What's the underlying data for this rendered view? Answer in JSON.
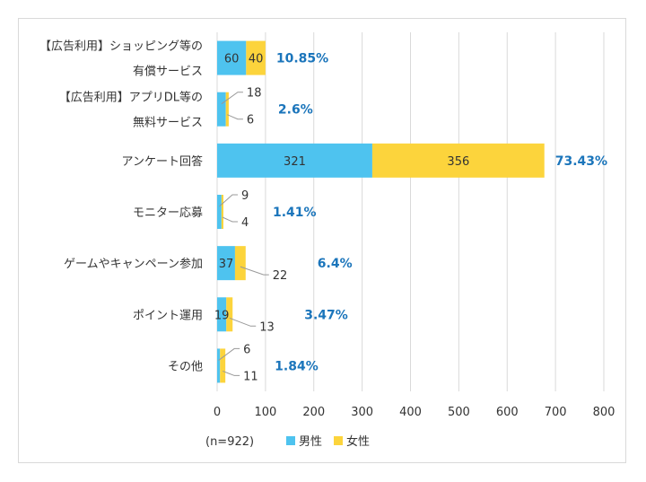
{
  "chart_data": {
    "type": "bar",
    "orientation": "horizontal",
    "stacked": true,
    "categories": [
      [
        "【広告利用】ショッピング等の",
        "有償サービス"
      ],
      [
        "【広告利用】アプリDL等の",
        "無料サービス"
      ],
      [
        "アンケート回答"
      ],
      [
        "モニター応募"
      ],
      [
        "ゲームやキャンペーン参加"
      ],
      [
        "ポイント運用"
      ],
      [
        "その他"
      ]
    ],
    "series": [
      {
        "name": "男性",
        "color": "#4ec3ef",
        "values": [
          60,
          18,
          321,
          9,
          37,
          19,
          6
        ]
      },
      {
        "name": "女性",
        "color": "#fcd43c",
        "values": [
          40,
          6,
          356,
          4,
          22,
          13,
          11
        ]
      }
    ],
    "percentages": [
      "10.85%",
      "2.6%",
      "73.43%",
      "1.41%",
      "6.4%",
      "3.47%",
      "1.84%"
    ],
    "xlim": [
      0,
      800
    ],
    "xticks": [
      0,
      100,
      200,
      300,
      400,
      500,
      600,
      700,
      800
    ],
    "grid": true,
    "note": "(n=922)"
  }
}
